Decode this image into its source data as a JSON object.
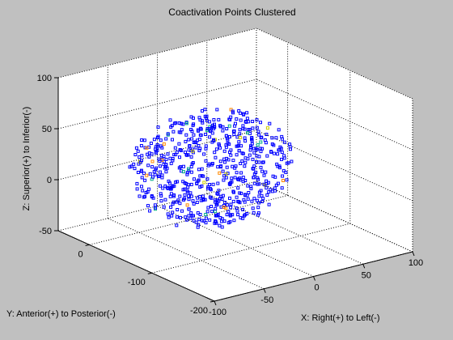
{
  "chart_data": {
    "type": "scatter",
    "title": "Coactivation Points Clustered",
    "xlabel": "X: Right(+) to Left(-)",
    "ylabel": "Y: Anterior(+) to Posterior(-)",
    "zlabel": "Z: Superior(+) to Inferior(-)",
    "xlim": [
      -100,
      100
    ],
    "ylim": [
      -200,
      50
    ],
    "zlim": [
      -50,
      100
    ],
    "x_ticks": [
      "-100",
      "-50",
      "0",
      "50",
      "100"
    ],
    "y_ticks": [
      "-200",
      "-100",
      "0"
    ],
    "z_ticks": [
      "-50",
      "0",
      "50",
      "100"
    ],
    "grid": true,
    "view": "3d",
    "cluster": {
      "approx_center": {
        "x": -5,
        "y": -45,
        "z": 15
      },
      "approx_radius": {
        "x": 72,
        "y": 70,
        "z": 55
      },
      "approx_point_count": 650
    },
    "series": [
      {
        "color": "#0000ff"
      },
      {
        "color": "#00aa88"
      },
      {
        "color": "#ff8800"
      },
      {
        "color": "#cccc00"
      }
    ]
  },
  "colors": {
    "background": "#c0c0c0",
    "axes_face": "#ffffff",
    "point": "#0000ff"
  }
}
